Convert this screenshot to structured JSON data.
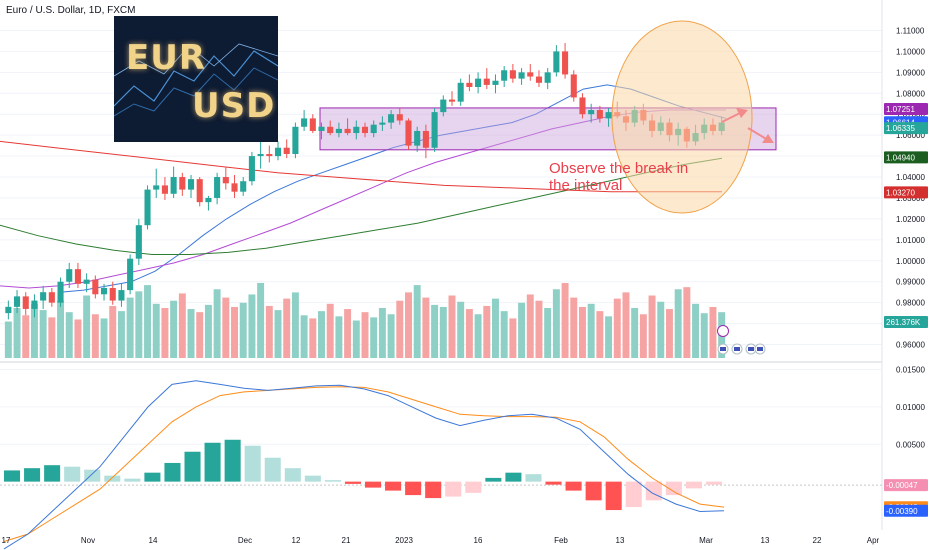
{
  "title": "Euro / U.S. Dollar, 1D, FXCM",
  "logo": {
    "line1": "EUR",
    "line2": "USD"
  },
  "annotation": {
    "line1": "Observe the break in",
    "line2": "the interval"
  },
  "colors": {
    "up": "#26a69a",
    "down": "#ef5350",
    "upVol": "#8fd0c6",
    "downVol": "#f5a4a3",
    "box": "#c9a0dc",
    "circle": "#fbd7a4",
    "ma_blue": "#3c78d8",
    "ma_purple": "#b44bd6",
    "ma_green": "#2e7d32",
    "ma_red": "#e53935",
    "macd": "#3c78d8",
    "signal": "#ff8c1a"
  },
  "chart_data": [
    {
      "type": "candlestick",
      "title": "Euro / U.S. Dollar, 1D, FXCM",
      "x_ticks": [
        "17",
        "Nov",
        "14",
        "Dec",
        "12",
        "21",
        "2023",
        "16",
        "Feb",
        "13",
        "Mar",
        "13",
        "22",
        "Apr"
      ],
      "y_ticks": [
        0.96,
        0.97,
        0.98,
        0.99,
        1.0,
        1.01,
        1.02,
        1.03,
        1.04,
        1.05,
        1.06,
        1.07,
        1.08,
        1.09,
        1.1,
        1.11
      ],
      "ylim": [
        0.955,
        1.115
      ],
      "price_tags": [
        {
          "label": "1.07251",
          "value": 1.07251,
          "color": "#9c27b0"
        },
        {
          "label": "1.06614",
          "value": 1.06614,
          "color": "#2962ff"
        },
        {
          "label": "1.06335",
          "value": 1.06335,
          "color": "#26a69a"
        },
        {
          "label": "1.04940",
          "value": 1.0494,
          "color": "#1b5e20"
        },
        {
          "label": "1.03270",
          "value": 1.0327,
          "color": "#d32f2f"
        }
      ],
      "volume_tag": "261.376K",
      "candles": [
        [
          0.975,
          0.981,
          0.972,
          0.978
        ],
        [
          0.978,
          0.986,
          0.975,
          0.983
        ],
        [
          0.983,
          0.985,
          0.974,
          0.977
        ],
        [
          0.977,
          0.984,
          0.973,
          0.981
        ],
        [
          0.981,
          0.988,
          0.977,
          0.985
        ],
        [
          0.985,
          0.987,
          0.978,
          0.98
        ],
        [
          0.98,
          0.992,
          0.978,
          0.99
        ],
        [
          0.99,
          0.999,
          0.987,
          0.996
        ],
        [
          0.996,
          0.999,
          0.987,
          0.989
        ],
        [
          0.989,
          0.994,
          0.985,
          0.991
        ],
        [
          0.991,
          0.993,
          0.982,
          0.984
        ],
        [
          0.984,
          0.989,
          0.981,
          0.987
        ],
        [
          0.987,
          0.99,
          0.979,
          0.981
        ],
        [
          0.981,
          0.989,
          0.978,
          0.986
        ],
        [
          0.986,
          1.003,
          0.984,
          1.001
        ],
        [
          1.001,
          1.02,
          0.998,
          1.017
        ],
        [
          1.017,
          1.036,
          1.015,
          1.034
        ],
        [
          1.034,
          1.044,
          1.03,
          1.036
        ],
        [
          1.036,
          1.04,
          1.029,
          1.032
        ],
        [
          1.032,
          1.045,
          1.03,
          1.04
        ],
        [
          1.04,
          1.042,
          1.031,
          1.034
        ],
        [
          1.034,
          1.041,
          1.03,
          1.039
        ],
        [
          1.039,
          1.04,
          1.026,
          1.028
        ],
        [
          1.028,
          1.031,
          1.024,
          1.03
        ],
        [
          1.03,
          1.042,
          1.027,
          1.04
        ],
        [
          1.04,
          1.045,
          1.034,
          1.037
        ],
        [
          1.037,
          1.041,
          1.03,
          1.033
        ],
        [
          1.033,
          1.04,
          1.031,
          1.038
        ],
        [
          1.038,
          1.052,
          1.036,
          1.05
        ],
        [
          1.05,
          1.058,
          1.044,
          1.051
        ],
        [
          1.051,
          1.055,
          1.047,
          1.05
        ],
        [
          1.05,
          1.057,
          1.048,
          1.054
        ],
        [
          1.054,
          1.058,
          1.049,
          1.051
        ],
        [
          1.051,
          1.066,
          1.049,
          1.064
        ],
        [
          1.064,
          1.072,
          1.062,
          1.068
        ],
        [
          1.068,
          1.07,
          1.061,
          1.062
        ],
        [
          1.062,
          1.066,
          1.058,
          1.064
        ],
        [
          1.064,
          1.067,
          1.06,
          1.061
        ],
        [
          1.061,
          1.066,
          1.059,
          1.063
        ],
        [
          1.063,
          1.068,
          1.06,
          1.061
        ],
        [
          1.061,
          1.067,
          1.058,
          1.064
        ],
        [
          1.064,
          1.066,
          1.059,
          1.061
        ],
        [
          1.061,
          1.067,
          1.059,
          1.065
        ],
        [
          1.065,
          1.069,
          1.062,
          1.066
        ],
        [
          1.066,
          1.072,
          1.063,
          1.07
        ],
        [
          1.07,
          1.073,
          1.065,
          1.067
        ],
        [
          1.067,
          1.068,
          1.053,
          1.055
        ],
        [
          1.055,
          1.064,
          1.052,
          1.062
        ],
        [
          1.062,
          1.065,
          1.049,
          1.054
        ],
        [
          1.054,
          1.073,
          1.052,
          1.071
        ],
        [
          1.071,
          1.079,
          1.069,
          1.077
        ],
        [
          1.077,
          1.081,
          1.074,
          1.076
        ],
        [
          1.076,
          1.087,
          1.074,
          1.085
        ],
        [
          1.085,
          1.089,
          1.081,
          1.083
        ],
        [
          1.083,
          1.09,
          1.08,
          1.087
        ],
        [
          1.087,
          1.092,
          1.082,
          1.084
        ],
        [
          1.084,
          1.089,
          1.08,
          1.086
        ],
        [
          1.086,
          1.093,
          1.083,
          1.091
        ],
        [
          1.091,
          1.094,
          1.085,
          1.087
        ],
        [
          1.087,
          1.092,
          1.084,
          1.09
        ],
        [
          1.09,
          1.094,
          1.086,
          1.088
        ],
        [
          1.088,
          1.091,
          1.083,
          1.085
        ],
        [
          1.085,
          1.092,
          1.082,
          1.09
        ],
        [
          1.09,
          1.103,
          1.088,
          1.1
        ],
        [
          1.1,
          1.104,
          1.087,
          1.089
        ],
        [
          1.089,
          1.091,
          1.076,
          1.078
        ],
        [
          1.078,
          1.08,
          1.068,
          1.07
        ],
        [
          1.07,
          1.075,
          1.066,
          1.072
        ],
        [
          1.072,
          1.074,
          1.066,
          1.068
        ],
        [
          1.068,
          1.073,
          1.064,
          1.071
        ],
        [
          1.071,
          1.076,
          1.068,
          1.069
        ],
        [
          1.069,
          1.072,
          1.062,
          1.066
        ],
        [
          1.066,
          1.074,
          1.064,
          1.072
        ],
        [
          1.072,
          1.075,
          1.065,
          1.067
        ],
        [
          1.067,
          1.07,
          1.059,
          1.062
        ],
        [
          1.062,
          1.069,
          1.06,
          1.066
        ],
        [
          1.066,
          1.068,
          1.057,
          1.06
        ],
        [
          1.06,
          1.066,
          1.055,
          1.063
        ],
        [
          1.063,
          1.064,
          1.054,
          1.057
        ],
        [
          1.057,
          1.065,
          1.055,
          1.061
        ],
        [
          1.061,
          1.068,
          1.058,
          1.065
        ],
        [
          1.065,
          1.068,
          1.06,
          1.062
        ],
        [
          1.062,
          1.069,
          1.06,
          1.066
        ]
      ],
      "range_box": {
        "top": 1.073,
        "bottom": 1.053
      },
      "ma": {
        "blue": [
          0.985,
          0.986,
          0.988,
          0.99,
          0.995,
          1.003,
          1.012,
          1.02,
          1.027,
          1.033,
          1.038,
          1.042,
          1.046,
          1.05,
          1.054,
          1.057,
          1.06,
          1.062,
          1.064,
          1.066,
          1.07,
          1.076,
          1.082,
          1.084,
          1.082,
          1.078,
          1.074,
          1.071,
          1.068
        ],
        "purple": [
          0.988,
          0.987,
          0.988,
          0.99,
          0.993,
          0.996,
          0.999,
          1.003,
          1.008,
          1.013,
          1.018,
          1.024,
          1.03,
          1.036,
          1.042,
          1.047,
          1.051,
          1.055,
          1.059,
          1.063,
          1.066,
          1.069,
          1.071,
          1.072,
          1.072,
          1.072
        ],
        "green": [
          1.017,
          1.012,
          1.008,
          1.005,
          1.003,
          1.003,
          1.004,
          1.006,
          1.009,
          1.012,
          1.015,
          1.018,
          1.022,
          1.026,
          1.03,
          1.034,
          1.038,
          1.042,
          1.046,
          1.049
        ],
        "red": [
          1.057,
          1.054,
          1.051,
          1.048,
          1.045,
          1.042,
          1.04,
          1.038,
          1.036,
          1.035,
          1.034,
          1.033,
          1.033,
          1.033
        ]
      }
    },
    {
      "type": "bar",
      "title": "",
      "series": [
        {
          "name": "",
          "values": [
            35,
            48,
            41,
            52,
            46,
            39,
            55,
            44,
            37,
            60,
            42,
            38,
            50,
            45,
            58,
            64,
            70,
            52,
            48,
            55,
            62,
            47,
            44,
            51,
            66,
            58,
            49,
            53,
            61,
            72,
            50,
            46,
            57,
            63,
            41,
            38,
            45,
            52,
            40,
            47,
            36,
            44,
            39,
            48,
            42,
            55,
            63,
            70,
            58,
            51,
            49,
            60,
            54,
            47,
            42,
            50,
            57,
            45,
            38,
            53,
            61,
            55,
            48,
            66,
            72,
            58,
            49,
            52,
            45,
            40,
            57,
            63,
            48,
            42,
            60,
            54,
            47,
            66,
            68,
            52,
            43,
            49,
            44
          ]
        }
      ]
    },
    {
      "type": "line",
      "title": "",
      "y_ticks": [
        0.005,
        0.01,
        0.015
      ],
      "tick_labels": [
        "0.00500",
        "0.01000",
        "0.01500"
      ],
      "value_tags": [
        {
          "label": "-0.00047",
          "value": -0.00047,
          "color": "#f48fb1"
        },
        {
          "label": "-0.00342",
          "value": -0.00342,
          "color": "#ff8c1a"
        },
        {
          "label": "-0.00390",
          "value": -0.0039,
          "color": "#2962ff"
        }
      ],
      "macd": [
        -0.009,
        -0.007,
        -0.004,
        -0.001,
        0.002,
        0.006,
        0.01,
        0.013,
        0.0135,
        0.013,
        0.0125,
        0.0122,
        0.0125,
        0.0128,
        0.0129,
        0.0124,
        0.0115,
        0.01,
        0.0085,
        0.0075,
        0.0082,
        0.0088,
        0.009,
        0.0085,
        0.007,
        0.004,
        0.001,
        -0.0015,
        -0.003,
        -0.004,
        -0.0039
      ],
      "signal": [
        -0.008,
        -0.007,
        -0.005,
        -0.003,
        -0.001,
        0.002,
        0.005,
        0.008,
        0.01,
        0.0115,
        0.012,
        0.0122,
        0.0124,
        0.0126,
        0.0127,
        0.0126,
        0.012,
        0.011,
        0.01,
        0.009,
        0.0088,
        0.0087,
        0.0087,
        0.0086,
        0.008,
        0.006,
        0.003,
        0.0005,
        -0.0015,
        -0.003,
        -0.0034
      ],
      "histogram": [
        0.0015,
        0.0018,
        0.0022,
        0.002,
        0.0016,
        0.0008,
        0.0004,
        0.0012,
        0.0025,
        0.004,
        0.0052,
        0.0056,
        0.0048,
        0.0032,
        0.0018,
        0.0008,
        0.0002,
        -0.0003,
        -0.0008,
        -0.0012,
        -0.0018,
        -0.0022,
        -0.002,
        -0.0015,
        0.0005,
        0.0012,
        0.001,
        -0.0004,
        -0.0012,
        -0.0025,
        -0.0038,
        -0.0034,
        -0.0025,
        -0.0018,
        -0.0009,
        -0.0004
      ]
    }
  ]
}
